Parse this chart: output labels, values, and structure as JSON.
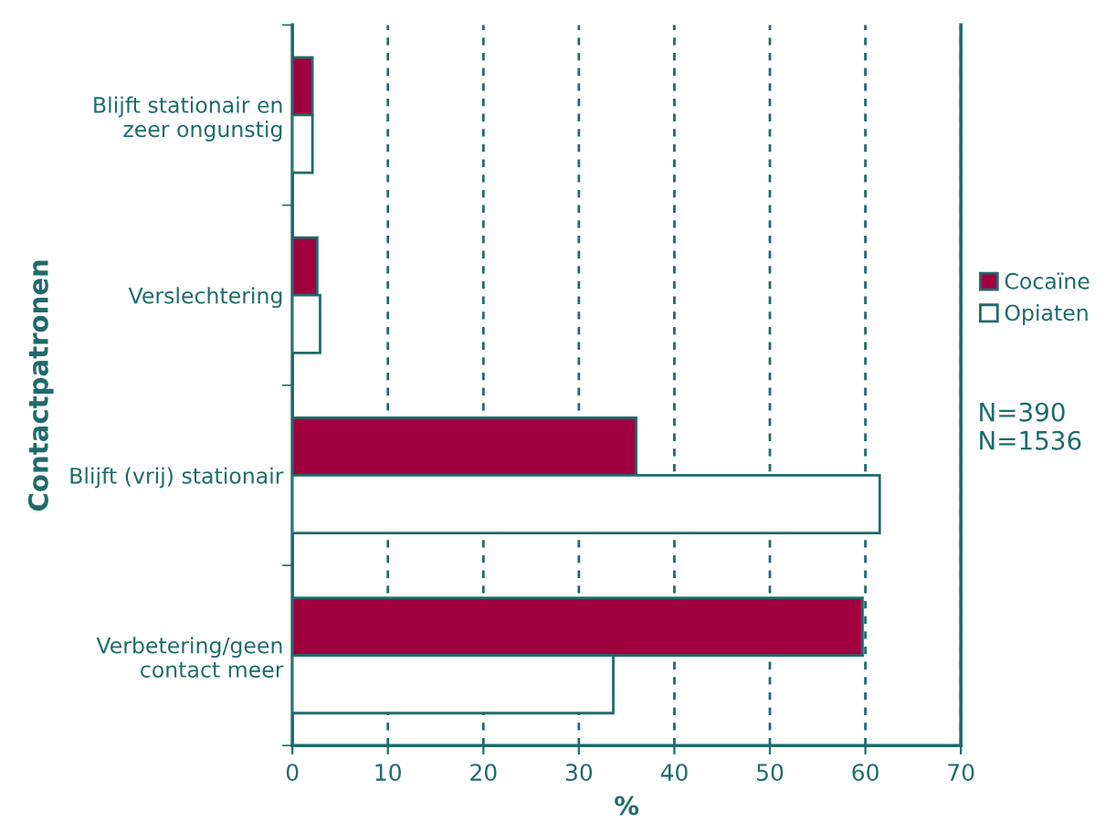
{
  "chart_data": {
    "type": "bar",
    "orientation": "horizontal",
    "xlabel": "%",
    "ylabel": "Contactpatronen",
    "categories": [
      "Blijft stationair en\nzeer ongunstig",
      "Verslechtering",
      "Blijft (vrij) stationair",
      "Verbetering/geen\ncontact meer"
    ],
    "series": [
      {
        "name": "Cocaïne",
        "color": "#a0003f",
        "values": [
          2.1,
          2.6,
          36.0,
          59.7
        ]
      },
      {
        "name": "Opiaten",
        "color": "#ffffff",
        "values": [
          2.1,
          2.9,
          61.5,
          33.6
        ]
      }
    ],
    "xlim": [
      0,
      70
    ],
    "xticks": [
      0,
      10,
      20,
      30,
      40,
      50,
      60,
      70
    ],
    "grid": "x",
    "legend": "right",
    "annotations": [
      "N=390\nN=1536"
    ]
  }
}
